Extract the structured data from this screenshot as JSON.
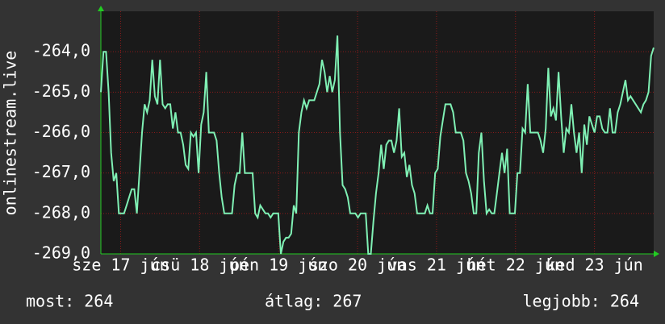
{
  "chart_data": {
    "type": "line",
    "y_axis_label": "onlinestream.live",
    "ylim": [
      -269,
      -263
    ],
    "yticks": [
      {
        "value": -264,
        "label": "-264,0"
      },
      {
        "value": -265,
        "label": "-265,0"
      },
      {
        "value": -266,
        "label": "-266,0"
      },
      {
        "value": -267,
        "label": "-267,0"
      },
      {
        "value": -268,
        "label": "-268,0"
      },
      {
        "value": -269,
        "label": "-269,0"
      }
    ],
    "xlim": [
      0,
      7
    ],
    "xticks": [
      {
        "value": 0.25,
        "label": "sze 17 jún"
      },
      {
        "value": 1.25,
        "label": "csü 18 jún"
      },
      {
        "value": 2.25,
        "label": "pén 19 jún"
      },
      {
        "value": 3.25,
        "label": "szo 20 jún"
      },
      {
        "value": 4.25,
        "label": "vas 21 jún"
      },
      {
        "value": 5.25,
        "label": "hét 22 jún"
      },
      {
        "value": 6.25,
        "label": "ked 23 jún"
      }
    ],
    "grid": true,
    "background": "#1a1a1a",
    "series": [
      {
        "color": "#7ff0b4",
        "values": [
          -265.0,
          -264.0,
          -264.0,
          -265,
          -266.5,
          -267.2,
          -267.0,
          -268.0,
          -268.0,
          -268.0,
          -267.8,
          -267.6,
          -267.4,
          -267.4,
          -268.0,
          -267.0,
          -266.0,
          -265.3,
          -265.5,
          -265.2,
          -264.2,
          -265.1,
          -265.3,
          -264.2,
          -265.3,
          -265.4,
          -265.3,
          -265.3,
          -265.9,
          -265.5,
          -266.0,
          -266.0,
          -266.3,
          -266.8,
          -266.9,
          -266.0,
          -266.1,
          -266.0,
          -267.0,
          -265.8,
          -265.5,
          -264.5,
          -266.0,
          -266.0,
          -266.0,
          -266.2,
          -267.0,
          -267.6,
          -268.0,
          -268.0,
          -268.0,
          -268.0,
          -267.3,
          -267.0,
          -267.0,
          -266.0,
          -267.0,
          -267.0,
          -267.0,
          -267.0,
          -268.0,
          -268.1,
          -267.8,
          -267.9,
          -268.0,
          -268.0,
          -268.1,
          -268.0,
          -268.0,
          -268.0,
          -269.0,
          -268.7,
          -268.6,
          -268.6,
          -268.5,
          -267.8,
          -268.0,
          -266.0,
          -265.5,
          -265.2,
          -265.4,
          -265.2,
          -265.2,
          -265.2,
          -265.0,
          -264.8,
          -264.2,
          -264.5,
          -265.0,
          -264.6,
          -265.0,
          -264.7,
          -263.6,
          -266.0,
          -267.3,
          -267.4,
          -267.6,
          -268.0,
          -268.0,
          -268.0,
          -268.1,
          -268.0,
          -268.0,
          -268.0,
          -269.0,
          -269.0,
          -268.2,
          -267.5,
          -267.0,
          -266.3,
          -266.9,
          -266.3,
          -266.2,
          -266.2,
          -266.5,
          -266.2,
          -265.4,
          -266.6,
          -266.5,
          -267.1,
          -266.8,
          -267.3,
          -267.5,
          -268.0,
          -268.0,
          -268.0,
          -268.0,
          -267.8,
          -268.0,
          -268.0,
          -267.0,
          -266.9,
          -266.1,
          -265.7,
          -265.3,
          -265.3,
          -265.3,
          -265.5,
          -266.0,
          -266.0,
          -266.0,
          -266.2,
          -267.0,
          -267.2,
          -267.5,
          -268.0,
          -268.0,
          -266.5,
          -266.0,
          -267.2,
          -268.0,
          -267.9,
          -268.0,
          -268.0,
          -267.5,
          -267.0,
          -266.5,
          -267.0,
          -266.4,
          -268.0,
          -268.0,
          -268.0,
          -267.0,
          -267.0,
          -265.9,
          -266.0,
          -264.8,
          -266.0,
          -266.0,
          -266.0,
          -266.0,
          -266.2,
          -266.5,
          -265.9,
          -264.4,
          -265.6,
          -265.4,
          -265.7,
          -264.5,
          -265.6,
          -266.5,
          -265.9,
          -266.0,
          -265.3,
          -266.0,
          -266.5,
          -266.0,
          -267.0,
          -265.8,
          -266.3,
          -265.6,
          -265.8,
          -266.0,
          -265.6,
          -265.6,
          -265.9,
          -266.0,
          -266.0,
          -265.4,
          -266.0,
          -266.0,
          -265.5,
          -265.3,
          -265.0,
          -264.7,
          -265.2,
          -265.1,
          -265.2,
          -265.3,
          -265.4,
          -265.5,
          -265.3,
          -265.2,
          -265.0,
          -264.1,
          -263.9
        ]
      }
    ]
  },
  "footer": {
    "current": "most: 264",
    "average": "átlag: 267",
    "best": "legjobb: 264"
  }
}
